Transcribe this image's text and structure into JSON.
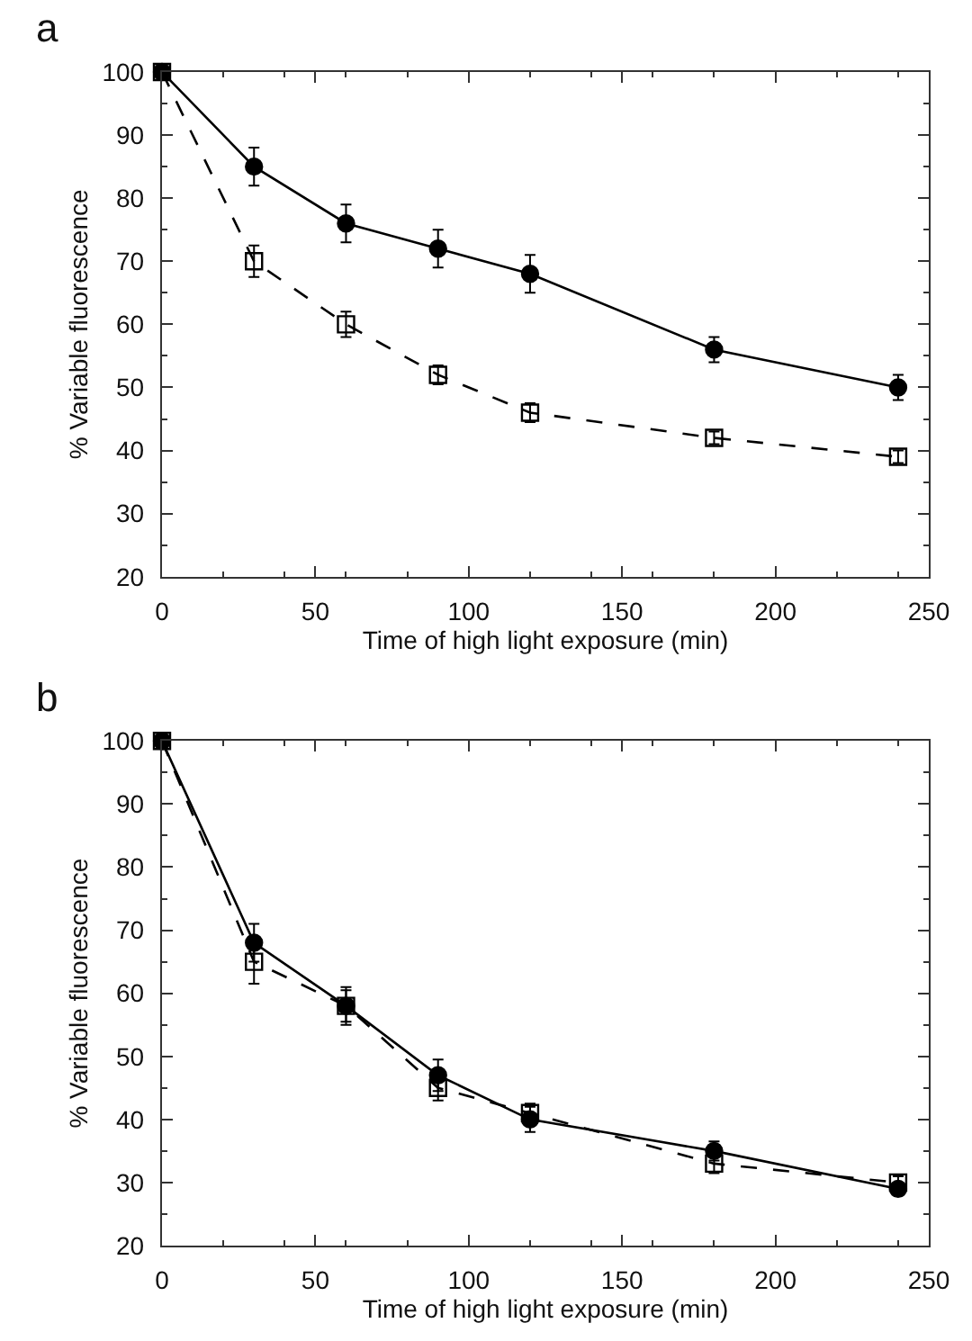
{
  "chart_data": [
    {
      "type": "line",
      "title": "a",
      "xlabel": "Time of high light exposure (min)",
      "ylabel": "% Variable fluorescence",
      "x": [
        0,
        30,
        60,
        90,
        120,
        180,
        240
      ],
      "xlim": [
        0,
        250
      ],
      "xticks": [
        0,
        50,
        100,
        150,
        200,
        250
      ],
      "ylim": [
        20,
        100
      ],
      "yticks": [
        20,
        30,
        40,
        50,
        60,
        70,
        80,
        90,
        100
      ],
      "series": [
        {
          "color": "#000000",
          "marker": "circle",
          "line_style": "solid",
          "values": [
            100,
            85,
            76,
            72,
            68,
            56,
            50
          ],
          "errors": [
            null,
            3,
            3,
            3,
            3,
            2,
            2
          ]
        },
        {
          "color": "#000000",
          "marker": "square",
          "line_style": "dashed",
          "values": [
            100,
            70,
            60,
            52,
            46,
            42,
            39
          ],
          "errors": [
            null,
            2.5,
            2,
            1.5,
            1.5,
            1,
            1
          ]
        }
      ]
    },
    {
      "type": "line",
      "title": "b",
      "xlabel": "Time of high light exposure (min)",
      "ylabel": "% Variable fluorescence",
      "x": [
        0,
        30,
        60,
        90,
        120,
        180,
        240
      ],
      "xlim": [
        0,
        250
      ],
      "xticks": [
        0,
        50,
        100,
        150,
        200,
        250
      ],
      "ylim": [
        20,
        100
      ],
      "yticks": [
        20,
        30,
        40,
        50,
        60,
        70,
        80,
        90,
        100
      ],
      "series": [
        {
          "color": "#000000",
          "marker": "circle",
          "line_style": "solid",
          "values": [
            100,
            68,
            58,
            47,
            40,
            35,
            29
          ],
          "errors": [
            null,
            3,
            3,
            2.5,
            2,
            1.5,
            null
          ]
        },
        {
          "color": "#000000",
          "marker": "square",
          "line_style": "dashed",
          "values": [
            100,
            65,
            58,
            45,
            41,
            33,
            30
          ],
          "errors": [
            null,
            3.5,
            2.5,
            2,
            1.5,
            1.5,
            1
          ]
        }
      ]
    }
  ]
}
